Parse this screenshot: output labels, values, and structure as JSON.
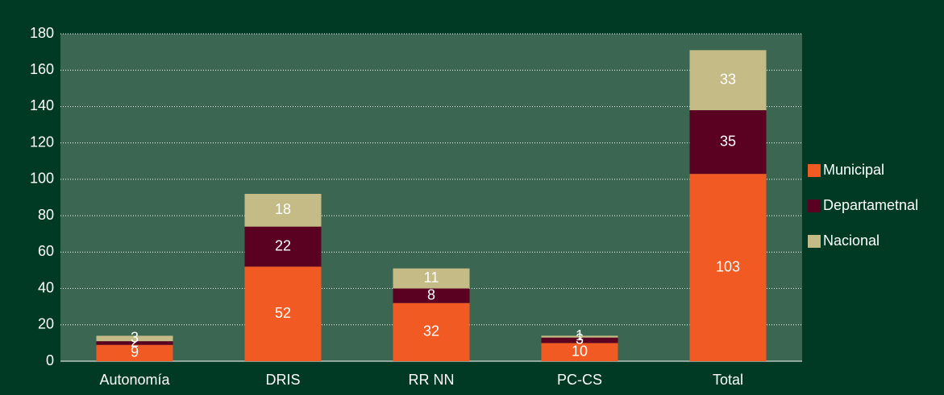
{
  "chart_data": {
    "type": "stacked_bar",
    "categories": [
      "Autonomía",
      "DRIS",
      "RR NN",
      "PC-CS",
      "Total"
    ],
    "series": [
      {
        "name": "Municipal",
        "color": "#f15a22",
        "values": [
          9,
          52,
          32,
          10,
          103
        ]
      },
      {
        "name": "Departametnal",
        "color": "#5a0020",
        "values": [
          2,
          22,
          8,
          3,
          35
        ]
      },
      {
        "name": "Nacional",
        "color": "#c4bb87",
        "values": [
          3,
          18,
          11,
          1,
          33
        ]
      }
    ],
    "ylim": [
      0,
      180
    ],
    "yticks": [
      0,
      20,
      40,
      60,
      80,
      100,
      120,
      140,
      160,
      180
    ],
    "grid": true,
    "legend": "right"
  }
}
